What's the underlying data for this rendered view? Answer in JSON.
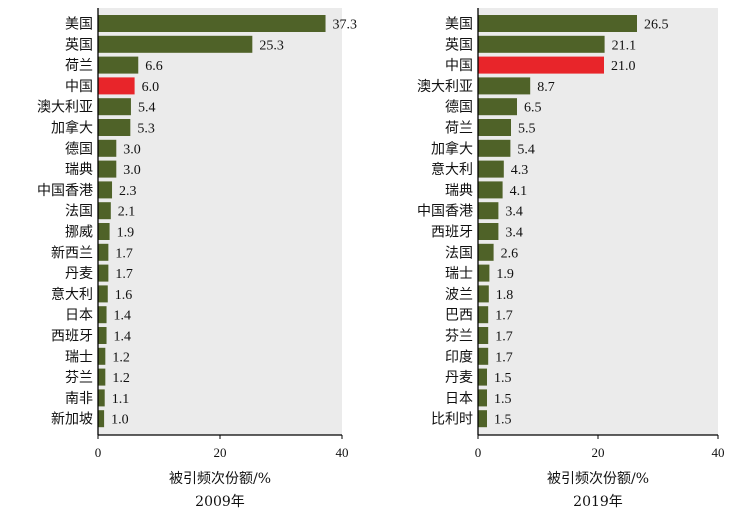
{
  "colors": {
    "default_bar": "#4f6228",
    "highlight_bar": "#e8252a",
    "panel_bg": "#ebebeb",
    "axis": "#000000"
  },
  "chart_data": [
    {
      "type": "bar",
      "orientation": "horizontal",
      "year_label": "2009年",
      "xlabel": "被引频次份额/%",
      "xlim": [
        0,
        40
      ],
      "xticks": [
        0,
        20,
        40
      ],
      "grid": false,
      "highlight": "中国",
      "categories": [
        "美国",
        "英国",
        "荷兰",
        "中国",
        "澳大利亚",
        "加拿大",
        "德国",
        "瑞典",
        "中国香港",
        "法国",
        "挪威",
        "新西兰",
        "丹麦",
        "意大利",
        "日本",
        "西班牙",
        "瑞士",
        "芬兰",
        "南非",
        "新加坡"
      ],
      "values": [
        37.3,
        25.3,
        6.6,
        6.0,
        5.4,
        5.3,
        3.0,
        3.0,
        2.3,
        2.1,
        1.9,
        1.7,
        1.7,
        1.6,
        1.4,
        1.4,
        1.2,
        1.2,
        1.1,
        1.0
      ],
      "value_labels": [
        "37.3",
        "25.3",
        "6.6",
        "6.0",
        "5.4",
        "5.3",
        "3.0",
        "3.0",
        "2.3",
        "2.1",
        "1.9",
        "1.7",
        "1.7",
        "1.6",
        "1.4",
        "1.4",
        "1.2",
        "1.2",
        "1.1",
        "1.0"
      ]
    },
    {
      "type": "bar",
      "orientation": "horizontal",
      "year_label": "2019年",
      "xlabel": "被引频次份额/%",
      "xlim": [
        0,
        40
      ],
      "xticks": [
        0,
        20,
        40
      ],
      "grid": false,
      "highlight": "中国",
      "categories": [
        "美国",
        "英国",
        "中国",
        "澳大利亚",
        "德国",
        "荷兰",
        "加拿大",
        "意大利",
        "瑞典",
        "中国香港",
        "西班牙",
        "法国",
        "瑞士",
        "波兰",
        "巴西",
        "芬兰",
        "印度",
        "丹麦",
        "日本",
        "比利时"
      ],
      "values": [
        26.5,
        21.1,
        21.0,
        8.7,
        6.5,
        5.5,
        5.4,
        4.3,
        4.1,
        3.4,
        3.4,
        2.6,
        1.9,
        1.8,
        1.7,
        1.7,
        1.7,
        1.5,
        1.5,
        1.5
      ],
      "value_labels": [
        "26.5",
        "21.1",
        "21.0",
        "8.7",
        "6.5",
        "5.5",
        "5.4",
        "4.3",
        "4.1",
        "3.4",
        "3.4",
        "2.6",
        "1.9",
        "1.8",
        "1.7",
        "1.7",
        "1.7",
        "1.5",
        "1.5",
        "1.5"
      ]
    }
  ]
}
